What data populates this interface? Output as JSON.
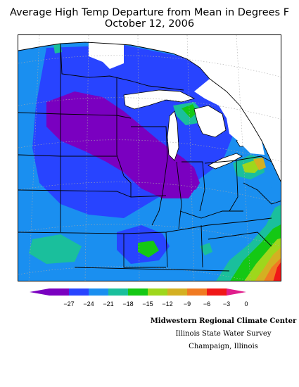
{
  "title_line1": "Average High Temp Departure from Mean in Degrees F",
  "title_line2": "October 12, 2006",
  "legend": {
    "colors": [
      "#7a00c0",
      "#2844ff",
      "#1a8ff0",
      "#1abf9c",
      "#14c814",
      "#9ed71c",
      "#d4b022",
      "#f07a22",
      "#f01818",
      "#e01e8c"
    ],
    "ticks": [
      "−27",
      "−24",
      "−21",
      "−18",
      "−15",
      "−12",
      "−9",
      "−6",
      "−3",
      "0"
    ]
  },
  "credits": {
    "line1": "Midwestern Regional Climate Center",
    "line2": "Illinois State Water Survey",
    "line3": "Champaign, Illinois"
  }
}
